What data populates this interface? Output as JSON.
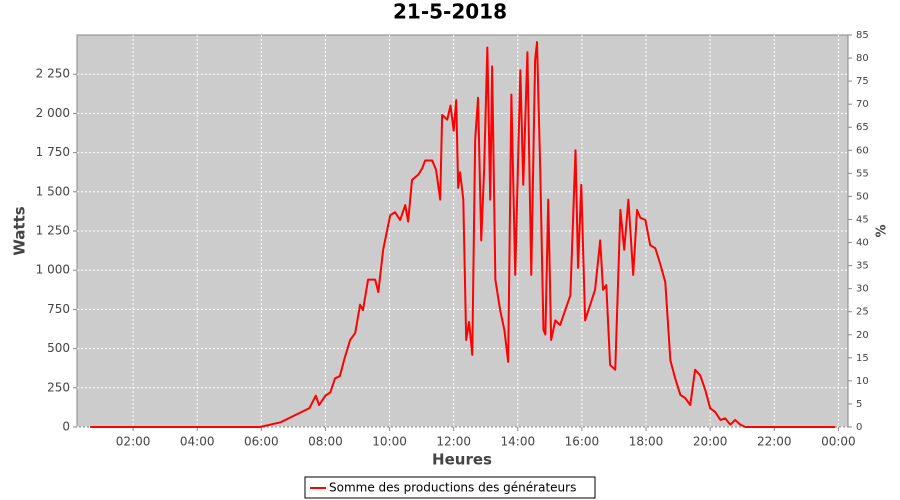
{
  "chart_data": {
    "type": "line",
    "title": "21-5-2018",
    "x_label": "Heures",
    "y_label": "Watts",
    "y2_label": "%",
    "xlim": [
      0.25,
      24.3
    ],
    "xticks": [
      {
        "value": 2,
        "label": "02:00"
      },
      {
        "value": 4,
        "label": "04:00"
      },
      {
        "value": 6,
        "label": "06:00"
      },
      {
        "value": 8,
        "label": "08:00"
      },
      {
        "value": 10,
        "label": "10:00"
      },
      {
        "value": 12,
        "label": "12:00"
      },
      {
        "value": 14,
        "label": "14:00"
      },
      {
        "value": 16,
        "label": "16:00"
      },
      {
        "value": 18,
        "label": "18:00"
      },
      {
        "value": 20,
        "label": "20:00"
      },
      {
        "value": 22,
        "label": "22:00"
      },
      {
        "value": 24,
        "label": "00:00"
      }
    ],
    "ylim": [
      0,
      2500
    ],
    "yticks": [
      0,
      250,
      500,
      750,
      {
        "value": 1000,
        "label": "1 000"
      },
      {
        "value": 1250,
        "label": "1 250"
      },
      {
        "value": 1500,
        "label": "1 500"
      },
      {
        "value": 1750,
        "label": "1 750"
      },
      {
        "value": 2000,
        "label": "2 000"
      },
      {
        "value": 2250,
        "label": "2 250"
      }
    ],
    "y2lim": [
      0,
      85
    ],
    "y2ticks": [
      0,
      5,
      10,
      15,
      20,
      25,
      30,
      35,
      40,
      45,
      50,
      55,
      60,
      65,
      70,
      75,
      80,
      85
    ],
    "grid": true,
    "x": [
      0.66,
      5.96,
      6.6,
      7.2,
      7.5,
      7.7,
      7.8,
      8.0,
      8.15,
      8.3,
      8.45,
      8.6,
      8.77,
      8.93,
      9.08,
      9.17,
      9.33,
      9.55,
      9.65,
      9.8,
      10.02,
      10.17,
      10.33,
      10.49,
      10.58,
      10.7,
      10.9,
      11.02,
      11.11,
      11.33,
      11.45,
      11.58,
      11.64,
      11.8,
      11.9,
      12.0,
      12.08,
      12.14,
      12.2,
      12.3,
      12.39,
      12.48,
      12.58,
      12.67,
      12.76,
      12.86,
      12.95,
      13.05,
      13.14,
      13.2,
      13.3,
      13.45,
      13.58,
      13.7,
      13.8,
      13.92,
      14.08,
      14.17,
      14.3,
      14.42,
      14.54,
      14.6,
      14.7,
      14.8,
      14.86,
      14.95,
      15.04,
      15.17,
      15.32,
      15.48,
      15.64,
      15.8,
      15.88,
      15.98,
      16.1,
      16.26,
      16.41,
      16.57,
      16.66,
      16.76,
      16.88,
      17.04,
      17.2,
      17.32,
      17.45,
      17.6,
      17.72,
      17.82,
      17.98,
      18.13,
      18.29,
      18.45,
      18.6,
      18.76,
      18.91,
      19.07,
      19.22,
      19.38,
      19.53,
      19.69,
      19.85,
      20.0,
      20.16,
      20.32,
      20.47,
      20.63,
      20.78,
      20.94,
      21.1,
      23.9
    ],
    "series": [
      {
        "name": "Somme des productions des  générateurs",
        "color": "#ff0000",
        "values": [
          0,
          0,
          30,
          90,
          120,
          200,
          140,
          200,
          220,
          310,
          325,
          440,
          555,
          600,
          780,
          745,
          940,
          940,
          860,
          1130,
          1350,
          1370,
          1320,
          1415,
          1310,
          1575,
          1610,
          1650,
          1700,
          1700,
          1640,
          1450,
          1990,
          1960,
          2050,
          1890,
          2085,
          1525,
          1625,
          1450,
          555,
          670,
          460,
          1830,
          2100,
          1190,
          1640,
          2420,
          1450,
          2300,
          940,
          745,
          620,
          415,
          2120,
          970,
          2275,
          1545,
          2390,
          970,
          2340,
          2455,
          1640,
          620,
          590,
          1450,
          555,
          680,
          650,
          745,
          840,
          1765,
          1015,
          1545,
          680,
          780,
          875,
          1190,
          875,
          905,
          395,
          365,
          1385,
          1130,
          1450,
          970,
          1385,
          1335,
          1320,
          1160,
          1140,
          1035,
          925,
          425,
          310,
          205,
          185,
          140,
          365,
          330,
          235,
          120,
          95,
          45,
          55,
          15,
          45,
          15,
          0,
          0
        ]
      }
    ]
  }
}
